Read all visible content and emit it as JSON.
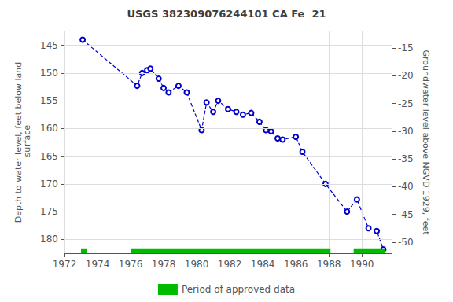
{
  "chart_data": {
    "type": "line",
    "title": "USGS 382309076244101 CA Fe  21",
    "ylabel": "Depth to water level, feet below land\n surface",
    "y2label": "Groundwater level above NGVD 1929, feet",
    "x": [
      1973.1,
      1976.4,
      1976.7,
      1977.0,
      1977.2,
      1977.7,
      1978.0,
      1978.3,
      1978.9,
      1979.4,
      1980.3,
      1980.6,
      1981.0,
      1981.3,
      1981.9,
      1982.4,
      1982.8,
      1983.3,
      1983.8,
      1984.2,
      1984.5,
      1984.9,
      1985.2,
      1986.0,
      1986.4,
      1987.8,
      1989.1,
      1989.7,
      1990.4,
      1990.9,
      1991.3
    ],
    "values": [
      144.0,
      152.3,
      150.0,
      149.5,
      149.2,
      151.0,
      152.7,
      153.5,
      152.3,
      153.5,
      160.3,
      155.3,
      157.0,
      155.0,
      156.5,
      157.0,
      157.5,
      157.2,
      158.8,
      160.3,
      160.5,
      161.8,
      162.0,
      161.5,
      164.2,
      170.0,
      175.0,
      172.8,
      178.0,
      178.5,
      181.8
    ],
    "color": "#0000CC",
    "line_style": "dashed",
    "marker": "circle",
    "xlim": [
      1972.0,
      1991.8
    ],
    "xticks": [
      1972,
      1974,
      1976,
      1978,
      1980,
      1982,
      1984,
      1986,
      1988,
      1990
    ],
    "ylim": [
      182.5,
      142.5
    ],
    "yticks": [
      145,
      150,
      155,
      160,
      165,
      170,
      175,
      180
    ],
    "y2lim": [
      -52.0,
      -12.0
    ],
    "y2ticks": [
      -15,
      -20,
      -25,
      -30,
      -35,
      -40,
      -45,
      -50
    ],
    "grid": true,
    "legend": "bottom",
    "approved_periods": {
      "name": "Period of approved data",
      "color": "#00bb00",
      "ranges": [
        [
          1973.0,
          1973.35
        ],
        [
          1976.0,
          1988.1
        ],
        [
          1989.5,
          1991.4
        ]
      ]
    }
  }
}
